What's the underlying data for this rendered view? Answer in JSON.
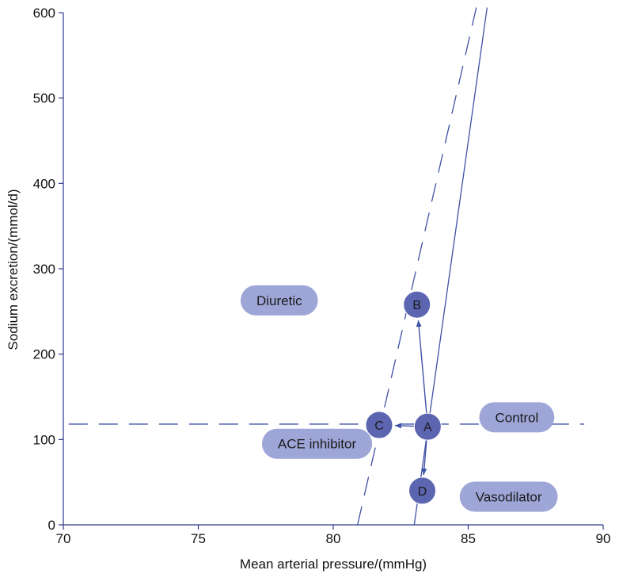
{
  "chart_data": {
    "type": "line",
    "xlabel": "Mean arterial pressure/(mmHg)",
    "ylabel": "Sodium excretion/(mmol/d)",
    "xlim": [
      70,
      90
    ],
    "ylim": [
      0,
      600
    ],
    "xticks": [
      "70",
      "75",
      "80",
      "85",
      "90"
    ],
    "yticks": [
      "0",
      "100",
      "200",
      "300",
      "400",
      "500",
      "600"
    ],
    "grid": false,
    "colors": {
      "line": "#3f51a5",
      "point_fill": "#5b65b0",
      "pill_fill": "#9ea6d8",
      "axis": "#2e3a8c"
    },
    "series": [
      {
        "style": "solid",
        "x": [
          83.0,
          85.7
        ],
        "y": [
          0,
          606
        ]
      },
      {
        "style": "dashed",
        "x": [
          80.9,
          85.3
        ],
        "y": [
          0,
          606
        ]
      },
      {
        "style": "dashed",
        "x": [
          70.2,
          89.3
        ],
        "y": [
          118,
          118
        ]
      }
    ],
    "points": [
      {
        "label": "A",
        "x": 83.5,
        "y": 115
      },
      {
        "label": "B",
        "x": 83.1,
        "y": 258
      },
      {
        "label": "C",
        "x": 81.7,
        "y": 117
      },
      {
        "label": "D",
        "x": 83.3,
        "y": 40
      }
    ],
    "arrows": [
      {
        "from": "A",
        "to": "B"
      },
      {
        "from": "A",
        "to": "C"
      },
      {
        "from": "A",
        "to": "D"
      }
    ],
    "annotations": [
      {
        "text": "Diuretic",
        "x": 78.0,
        "y": 263
      },
      {
        "text": "Control",
        "x": 86.8,
        "y": 126
      },
      {
        "text": "ACE inhibitor",
        "x": 79.4,
        "y": 95
      },
      {
        "text": "Vasodilator",
        "x": 86.5,
        "y": 33
      }
    ]
  }
}
